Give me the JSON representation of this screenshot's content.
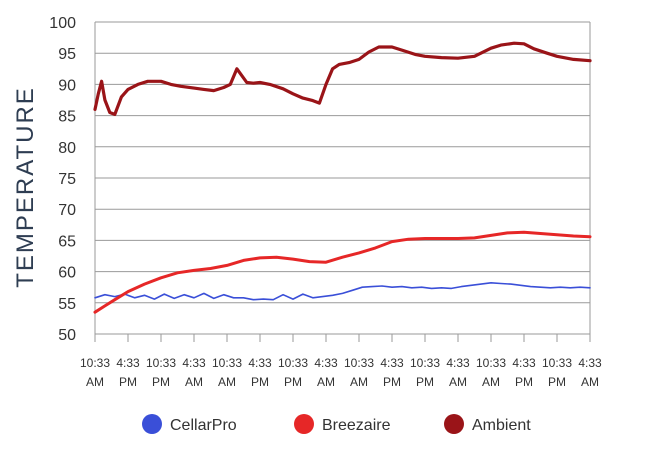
{
  "chart_data": {
    "type": "line",
    "ylabel": "TEMPERATURE",
    "xlabel": "",
    "ylim": [
      50,
      100
    ],
    "yticks": [
      50,
      55,
      60,
      65,
      70,
      75,
      80,
      85,
      90,
      95,
      100
    ],
    "xticks": [
      {
        "top": "10:33",
        "bottom": "AM"
      },
      {
        "top": "4:33",
        "bottom": "PM"
      },
      {
        "top": "10:33",
        "bottom": "PM"
      },
      {
        "top": "4:33",
        "bottom": "AM"
      },
      {
        "top": "10:33",
        "bottom": "AM"
      },
      {
        "top": "4:33",
        "bottom": "PM"
      },
      {
        "top": "10:33",
        "bottom": "PM"
      },
      {
        "top": "4:33",
        "bottom": "AM"
      },
      {
        "top": "10:33",
        "bottom": "AM"
      },
      {
        "top": "4:33",
        "bottom": "PM"
      },
      {
        "top": "10:33",
        "bottom": "PM"
      },
      {
        "top": "4:33",
        "bottom": "AM"
      },
      {
        "top": "10:33",
        "bottom": "AM"
      },
      {
        "top": "4:33",
        "bottom": "PM"
      },
      {
        "top": "10:33",
        "bottom": "PM"
      },
      {
        "top": "4:33",
        "bottom": "AM"
      }
    ],
    "grid": true,
    "legend_position": "bottom",
    "series": [
      {
        "name": "CellarPro",
        "color": "#3a4fd8",
        "x": [
          0,
          0.3,
          0.6,
          0.9,
          1.2,
          1.5,
          1.8,
          2.1,
          2.4,
          2.7,
          3.0,
          3.3,
          3.6,
          3.9,
          4.2,
          4.5,
          4.8,
          5.1,
          5.4,
          5.7,
          6.0,
          6.3,
          6.6,
          6.9,
          7.2,
          7.5,
          7.8,
          8.1,
          8.4,
          8.7,
          9.0,
          9.3,
          9.6,
          9.9,
          10.2,
          10.5,
          10.8,
          11.1,
          11.4,
          11.7,
          12.0,
          12.3,
          12.6,
          12.9,
          13.2,
          13.5,
          13.8,
          14.1,
          14.4,
          14.7,
          15.0
        ],
        "values": [
          55.8,
          56.3,
          56.0,
          56.4,
          55.8,
          56.2,
          55.6,
          56.4,
          55.7,
          56.3,
          55.8,
          56.5,
          55.7,
          56.3,
          55.8,
          55.8,
          55.5,
          55.6,
          55.5,
          56.3,
          55.6,
          56.4,
          55.8,
          56.0,
          56.2,
          56.5,
          57.0,
          57.5,
          57.6,
          57.7,
          57.5,
          57.6,
          57.4,
          57.5,
          57.3,
          57.4,
          57.3,
          57.6,
          57.8,
          58.0,
          58.2,
          58.1,
          58.0,
          57.8,
          57.6,
          57.5,
          57.4,
          57.5,
          57.4,
          57.5,
          57.4
        ]
      },
      {
        "name": "Breezaire",
        "color": "#e62727",
        "x": [
          0,
          0.3,
          0.6,
          1.0,
          1.5,
          2.0,
          2.5,
          3.0,
          3.5,
          4.0,
          4.5,
          5.0,
          5.5,
          6.0,
          6.5,
          7.0,
          7.5,
          8.0,
          8.5,
          9.0,
          9.5,
          10.0,
          10.5,
          11.0,
          11.5,
          12.0,
          12.5,
          13.0,
          13.5,
          14.0,
          14.5,
          15.0
        ],
        "values": [
          53.5,
          54.5,
          55.5,
          56.8,
          58.0,
          59.0,
          59.8,
          60.2,
          60.5,
          61.0,
          61.8,
          62.2,
          62.3,
          62.0,
          61.6,
          61.5,
          62.3,
          63.0,
          63.8,
          64.8,
          65.2,
          65.3,
          65.3,
          65.3,
          65.4,
          65.8,
          66.2,
          66.3,
          66.1,
          65.9,
          65.7,
          65.6
        ]
      },
      {
        "name": "Ambient",
        "color": "#9a1418",
        "x": [
          0,
          0.1,
          0.2,
          0.3,
          0.45,
          0.6,
          0.8,
          1.0,
          1.3,
          1.6,
          2.0,
          2.3,
          2.6,
          3.0,
          3.3,
          3.6,
          3.9,
          4.1,
          4.3,
          4.6,
          4.8,
          5.0,
          5.3,
          5.7,
          6.0,
          6.3,
          6.6,
          6.8,
          7.0,
          7.2,
          7.4,
          7.7,
          8.0,
          8.3,
          8.6,
          9.0,
          9.3,
          9.7,
          10.0,
          10.5,
          11.0,
          11.5,
          12.0,
          12.3,
          12.7,
          13.0,
          13.3,
          13.7,
          14.0,
          14.5,
          15.0
        ],
        "values": [
          86.0,
          88.5,
          90.5,
          87.5,
          85.5,
          85.2,
          88.0,
          89.2,
          90.0,
          90.5,
          90.5,
          90.0,
          89.7,
          89.4,
          89.2,
          89.0,
          89.5,
          90.0,
          92.5,
          90.3,
          90.2,
          90.3,
          90.0,
          89.3,
          88.5,
          87.8,
          87.4,
          87.0,
          90.0,
          92.5,
          93.2,
          93.5,
          94.0,
          95.2,
          96.0,
          96.0,
          95.5,
          94.8,
          94.5,
          94.3,
          94.2,
          94.5,
          95.8,
          96.3,
          96.6,
          96.5,
          95.7,
          95.0,
          94.5,
          94.0,
          93.8
        ]
      }
    ]
  }
}
